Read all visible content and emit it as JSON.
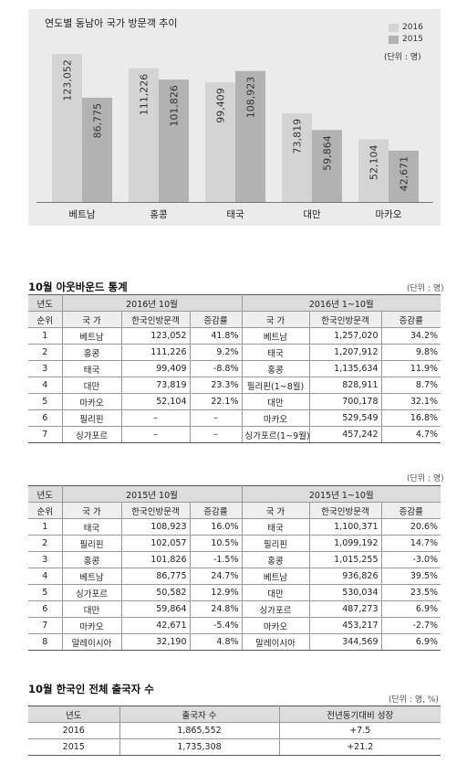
{
  "chart_data": {
    "type": "bar",
    "title": "연도별 동남아 국가 방문객 추이",
    "unit_note": "(단위 : 명)",
    "categories": [
      "베트남",
      "홍콩",
      "태국",
      "대만",
      "마카오"
    ],
    "series": [
      {
        "name": "2016",
        "values": [
          123052,
          111226,
          99409,
          73819,
          52104
        ],
        "labels": [
          "123,052",
          "111,226",
          "99,409",
          "73,819",
          "52,104"
        ],
        "color": "#d4d4d4"
      },
      {
        "name": "2015",
        "values": [
          86775,
          101826,
          108923,
          59864,
          42671
        ],
        "labels": [
          "86,775",
          "101,826",
          "108,923",
          "59,864",
          "42,671"
        ],
        "color": "#b2b2b2"
      }
    ],
    "ylim": [
      0,
      130000
    ],
    "grid": false,
    "legend_position": "top-right"
  },
  "table1": {
    "title": "10월 아웃바운드 통계",
    "unit": "(단위 : 명)",
    "header1": [
      "년도",
      "2016년 10월",
      "2016년 1~10월"
    ],
    "header2": [
      "순위",
      "국 가",
      "한국인방문객",
      "증감률",
      "국 가",
      "한국인방문객",
      "증감률"
    ],
    "rows": [
      [
        "1",
        "베트남",
        "123,052",
        "41.8%",
        "베트남",
        "1,257,020",
        "34.2%"
      ],
      [
        "2",
        "홍콩",
        "111,226",
        "9.2%",
        "태국",
        "1,207,912",
        "9.8%"
      ],
      [
        "3",
        "태국",
        "99,409",
        "-8.8%",
        "홍콩",
        "1,135,634",
        "11.9%"
      ],
      [
        "4",
        "대만",
        "73,819",
        "23.3%",
        "필리핀(1~8월)",
        "828,911",
        "8.7%"
      ],
      [
        "5",
        "마카오",
        "52,104",
        "22.1%",
        "대만",
        "700,178",
        "32.1%"
      ],
      [
        "6",
        "필리핀",
        "–",
        "–",
        "마카오",
        "529,549",
        "16.8%"
      ],
      [
        "7",
        "싱가포르",
        "–",
        "–",
        "싱가포르(1~9월)",
        "457,242",
        "4.7%"
      ]
    ]
  },
  "table2": {
    "unit": "(단위 : 명)",
    "header1": [
      "년도",
      "2015년 10월",
      "2015년 1~10월"
    ],
    "header2": [
      "순위",
      "국 가",
      "한국인방문객",
      "증감률",
      "국 가",
      "한국인방문객",
      "증감률"
    ],
    "rows": [
      [
        "1",
        "태국",
        "108,923",
        "16.0%",
        "태국",
        "1,100,371",
        "20.6%"
      ],
      [
        "2",
        "필리핀",
        "102,057",
        "10.5%",
        "필리핀",
        "1,099,192",
        "14.7%"
      ],
      [
        "3",
        "홍콩",
        "101,826",
        "-1.5%",
        "홍콩",
        "1,015,255",
        "-3.0%"
      ],
      [
        "4",
        "베트남",
        "86,775",
        "24.7%",
        "베트남",
        "936,826",
        "39.5%"
      ],
      [
        "5",
        "싱가포르",
        "50,582",
        "12.9%",
        "대만",
        "530,034",
        "23.5%"
      ],
      [
        "6",
        "대만",
        "59,864",
        "24.8%",
        "싱가포르",
        "487,273",
        "6.9%"
      ],
      [
        "7",
        "마카오",
        "42,671",
        "-5.4%",
        "마카오",
        "453,217",
        "-2.7%"
      ],
      [
        "8",
        "말레이시아",
        "32,190",
        "4.8%",
        "말레이시아",
        "344,569",
        "6.9%"
      ]
    ]
  },
  "table3": {
    "title": "10월 한국인 전체 출국자 수",
    "unit": "(단위 : 명, %)",
    "header": [
      "년도",
      "출국자 수",
      "전년동기대비 성장"
    ],
    "rows": [
      [
        "2016",
        "1,865,552",
        "+7.5"
      ],
      [
        "2015",
        "1,735,308",
        "+21.2"
      ]
    ]
  }
}
